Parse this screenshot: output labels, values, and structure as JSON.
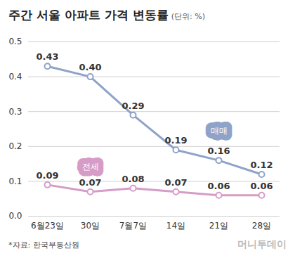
{
  "chart_data": {
    "type": "line",
    "title": "주간 서울 아파트 가격 변동률",
    "subtitle": "(단위: %)",
    "source": "*자료: 한국부동산원",
    "annotations": [
      "머니투데이"
    ],
    "categories": [
      "6월23일",
      "30일",
      "7월7일",
      "14일",
      "21일",
      "28일"
    ],
    "series": [
      {
        "name": "매매",
        "color": "#8fa3c9",
        "values": [
          0.43,
          0.4,
          0.29,
          0.19,
          0.16,
          0.12
        ],
        "value_labels": [
          "0.43",
          "0.40",
          "0.29",
          "0.19",
          "0.16",
          "0.12"
        ]
      },
      {
        "name": "전세",
        "color": "#d69cc8",
        "values": [
          0.09,
          0.07,
          0.08,
          0.07,
          0.06,
          0.06
        ]
      }
    ],
    "ylim": [
      0,
      0.5
    ],
    "yticks": [
      {
        "value": 0,
        "label": "0.0"
      },
      0.1,
      0.2,
      0.3,
      0.4,
      0.5
    ],
    "grid": true,
    "data_labels": true,
    "marker": "circle"
  }
}
